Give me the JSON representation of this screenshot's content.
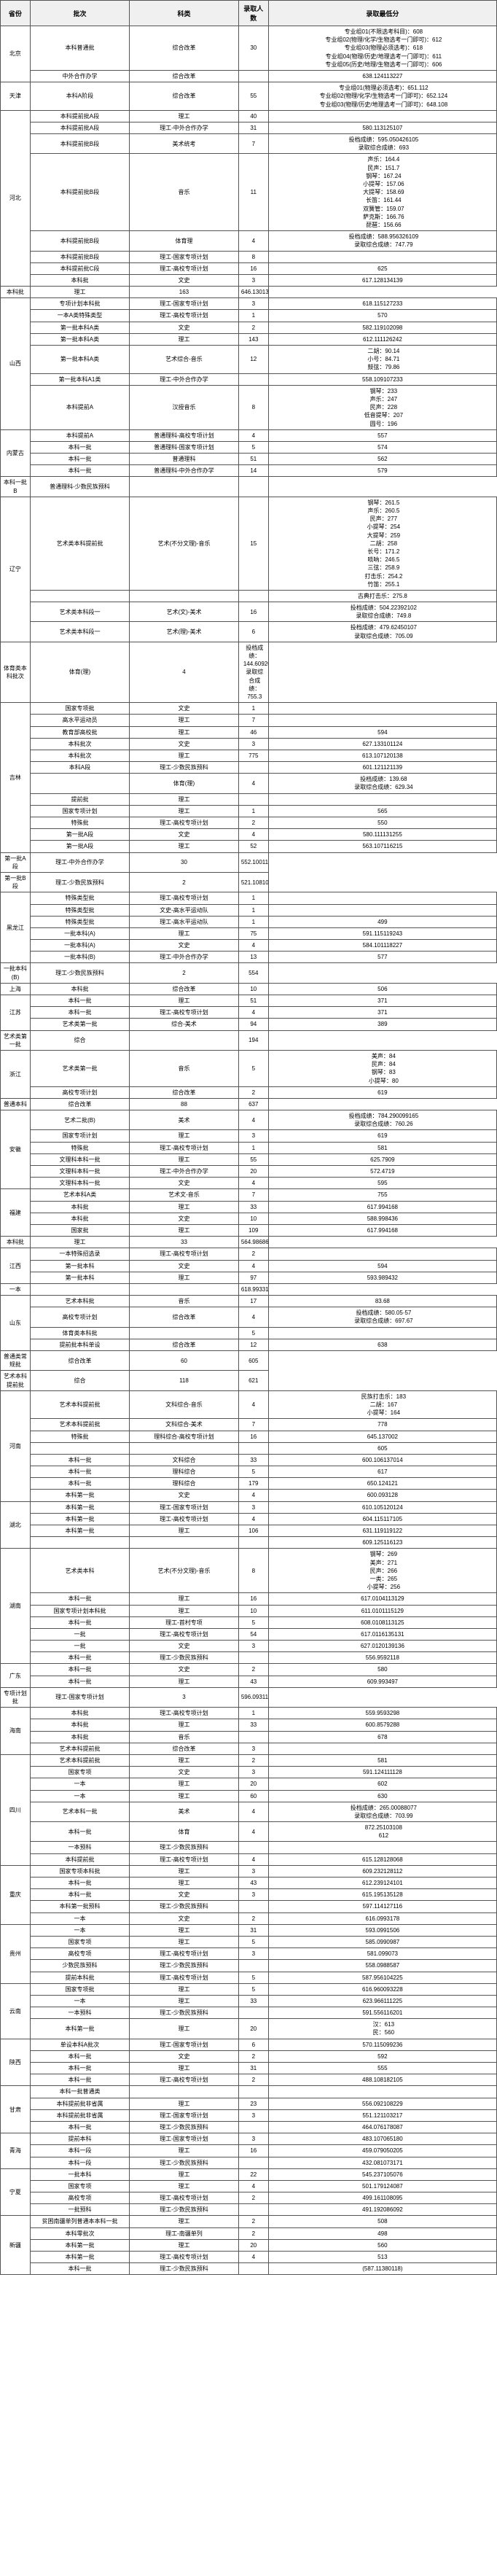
{
  "headers": [
    "省份",
    "批次",
    "科类",
    "录取人数",
    "录取最低分"
  ],
  "col_widths": [
    "6%",
    "20%",
    "22%",
    "6%",
    "46%"
  ],
  "rows": [
    {
      "p": "北京",
      "pr": 2,
      "b": "本科普通批",
      "s": "综合改革",
      "n": "30",
      "d": [
        "专业组01(不限选考科目)：608",
        "专业组02(物理/化学/生物选考一门即可)：612",
        "专业组03(物理必须选考)：618",
        "专业组04(物理/历史/地理选考一门即可)：611",
        "专业组05(历史/地理/生物选考一门即可)：606"
      ]
    },
    {
      "b": "中外合作办学",
      "s": "综合改革",
      "n": "",
      "d": [
        "638.124113227"
      ]
    },
    {
      "p": "天津",
      "pr": 1,
      "b": "本科A阶段",
      "s": "综合改革",
      "n": "55",
      "d": [
        "专业组01(物理必须选考)：651.112",
        "专业组02(物理/化学/生物选考一门即可)：652.124",
        "专业组03(物理/历史/地理选考一门即可)：648.108"
      ]
    },
    {
      "p": "河北",
      "pr": 8,
      "b": "本科提前批A段",
      "s": "理工",
      "n": "40",
      "d": []
    },
    {
      "b": "本科提前批A段",
      "s": "理工-中外合作办学",
      "n": "31",
      "d": [
        "580.113125107"
      ]
    },
    {
      "b": "本科提前批B段",
      "s": "美术统考",
      "n": "7",
      "d": [
        "投档成绩：595.050426105",
        "录取综合成绩：693"
      ]
    },
    {
      "b": "本科提前批B段",
      "s": "音乐",
      "n": "11",
      "d": [
        "声乐：164.4",
        "民声：151.7",
        "钢琴：167.24",
        "小提琴：157.06",
        "大提琴：158.69",
        "长笛：161.44",
        "双簧管：159.07",
        "萨克斯：166.76",
        "琵琶：156.66"
      ]
    },
    {
      "b": "本科提前批B段",
      "s": "体育理",
      "n": "4",
      "d": [
        "投档成绩：588.956326109",
        "录取综合成绩：747.79"
      ]
    },
    {
      "b": "本科提前批B段",
      "s": "理工-国家专项计划",
      "n": "8",
      "d": []
    },
    {
      "b": "本科提前批C段",
      "s": "理工-高校专项计划",
      "n": "16",
      "d": [
        "625"
      ]
    },
    {
      "b": "本科批",
      "s": "文史",
      "n": "3",
      "d": [
        "617.128134139"
      ]
    },
    {
      "b": "本科批",
      "s": "理工",
      "n": "163",
      "d": [
        "646.130134133"
      ]
    },
    {
      "p": "山西",
      "pr": 7,
      "b": "专项计划本科批",
      "s": "理工-国家专项计划",
      "n": "3",
      "d": [
        "618.115127233"
      ]
    },
    {
      "b": "一本A类特殊类型",
      "s": "理工-高校专项计划",
      "n": "1",
      "d": [
        "570"
      ]
    },
    {
      "b": "第一批本科A类",
      "s": "文史",
      "n": "2",
      "d": [
        "582.119102098"
      ]
    },
    {
      "b": "第一批本科A类",
      "s": "理工",
      "n": "143",
      "d": [
        "612.111126242"
      ]
    },
    {
      "b": "第一批本科A类",
      "s": "艺术综合-音乐",
      "n": "12",
      "d": [
        "二胡：90.14",
        "小号：84.71",
        "鼓弦：79.86"
      ]
    },
    {
      "b": "第一批本科A1类",
      "s": "理工-中外合作办学",
      "n": "",
      "d": [
        "558.109107233"
      ]
    },
    {
      "b": "本科提前A",
      "s": "汉授音乐",
      "n": "8",
      "d": [
        "钢琴：233",
        "声乐：247",
        "民声：228",
        "低音提琴：207",
        "圆号：196"
      ]
    },
    {
      "p": "内蒙古",
      "pr": 4,
      "b": "本科提前A",
      "s": "普通理科-高校专项计划",
      "n": "4",
      "d": [
        "557"
      ]
    },
    {
      "b": "本科一批",
      "s": "普通理科-国家专项计划",
      "n": "5",
      "d": [
        "574"
      ]
    },
    {
      "b": "本科一批",
      "s": "普通理科",
      "n": "51",
      "d": [
        "562"
      ]
    },
    {
      "b": "本科一批",
      "s": "普通理科-中外合作办学",
      "n": "14",
      "d": [
        "579"
      ]
    },
    {
      "b": "本科一批B",
      "s": "普通理科-少数民族预科",
      "n": "",
      "d": [
        ""
      ]
    },
    {
      "p": "辽宁",
      "pr": 4,
      "b": "艺术类本科提前批",
      "s": "艺术(不分文理)-音乐",
      "n": "15",
      "d": [
        "钢琴：261.5",
        "声乐：260.5",
        "民声：277",
        "小提琴：254",
        "大提琴：259",
        "二胡：258",
        "长号：171.2",
        "唢呐：246.5",
        "三弦：258.9",
        "打击乐：254.2",
        "竹笛：255.1"
      ]
    },
    {
      "b": "",
      "s": "",
      "n": "",
      "d": [
        "古典打击乐：275.8"
      ]
    },
    {
      "b": "艺术类本科段一",
      "s": "艺术(文)-美术",
      "n": "16",
      "d": [
        "投档成绩：504.22392102",
        "录取综合成绩：749.8"
      ]
    },
    {
      "b": "艺术类本科段一",
      "s": "艺术(理)-美术",
      "n": "6",
      "d": [
        "投档成绩：479.62450107",
        "录取综合成绩：705.09"
      ]
    },
    {
      "b": "体育类本科批次",
      "s": "体育(理)",
      "n": "4",
      "d": [
        "投档成绩：144.6092007",
        "录取综合成绩：755.3"
      ]
    },
    {
      "p": "吉林",
      "pr": 12,
      "b": "国家专项批",
      "s": "文史",
      "n": "1",
      "d": [
        ""
      ]
    },
    {
      "b": "高水平运动员",
      "s": "理工",
      "n": "7",
      "d": [
        ""
      ]
    },
    {
      "b": "教育部高校批",
      "s": "理工",
      "n": "46",
      "d": [
        "594"
      ]
    },
    {
      "b": "本科批次",
      "s": "文史",
      "n": "3",
      "d": [
        "627.133101124"
      ]
    },
    {
      "b": "本科批次",
      "s": "理工",
      "n": "775",
      "d": [
        "613.107120138"
      ]
    },
    {
      "b": "本科A段",
      "s": "理工-少数民族预科",
      "n": "",
      "d": [
        "601.121121139"
      ]
    },
    {
      "b": "",
      "s": "体育(理)",
      "n": "4",
      "d": [
        "投档成绩：139.68",
        "录取综合成绩：629.34"
      ]
    },
    {
      "b": "提前批",
      "s": "理工",
      "n": "",
      "d": [
        ""
      ]
    },
    {
      "b": "国家专项计划",
      "s": "理工",
      "n": "1",
      "d": [
        "565"
      ]
    },
    {
      "b": "特殊批",
      "s": "理工-高校专项计划",
      "n": "2",
      "d": [
        "550"
      ]
    },
    {
      "b": "第一批A段",
      "s": "文史",
      "n": "4",
      "d": [
        "580.111131255"
      ]
    },
    {
      "b": "第一批A段",
      "s": "理工",
      "n": "52",
      "d": [
        "563.107116215"
      ]
    },
    {
      "b": "第一批A段",
      "s": "理工-中外合作办学",
      "n": "30",
      "d": [
        "552.100112227"
      ]
    },
    {
      "b": "第一批B段",
      "s": "理工-少数民族预科",
      "n": "2",
      "d": [
        "521.108103201"
      ]
    },
    {
      "p": "黑龙江",
      "pr": 6,
      "b": "特殊类型批",
      "s": "理工-高校专项计划",
      "n": "1",
      "d": [
        ""
      ]
    },
    {
      "b": "特殊类型批",
      "s": "文史-高水平运动队",
      "n": "1",
      "d": [
        ""
      ]
    },
    {
      "b": "特殊类型批",
      "s": "理工-高水平运动队",
      "n": "1",
      "d": [
        "499"
      ]
    },
    {
      "b": "一批本科(A)",
      "s": "理工",
      "n": "75",
      "d": [
        "591.115119243"
      ]
    },
    {
      "b": "一批本科(A)",
      "s": "文史",
      "n": "4",
      "d": [
        "584.101118227"
      ]
    },
    {
      "b": "一批本科(B)",
      "s": "理工-中外合作办学",
      "n": "13",
      "d": [
        "577"
      ]
    },
    {
      "b": "一批本科(B)",
      "s": "理工-少数民族预科",
      "n": "2",
      "d": [
        "554"
      ]
    },
    {
      "p": "上海",
      "pr": 1,
      "b": "本科批",
      "s": "综合改革",
      "n": "10",
      "d": [
        "506"
      ]
    },
    {
      "p": "江苏",
      "pr": 3,
      "b": "本科一批",
      "s": "理工",
      "n": "51",
      "d": [
        "371"
      ]
    },
    {
      "b": "本科一批",
      "s": "理工-高校专项计划",
      "n": "4",
      "d": [
        "371"
      ]
    },
    {
      "b": "艺术类第一批",
      "s": "综合-美术",
      "n": "94",
      "d": [
        "389"
      ]
    },
    {
      "b": "艺术类第一批",
      "s": "综合",
      "n": "",
      "d": [
        "194"
      ]
    },
    {
      "p": "浙江",
      "pr": 2,
      "b": "艺术类第一批",
      "s": "音乐",
      "n": "5",
      "d": [
        "美声：84",
        "民声：84",
        "钢琴：83",
        "小提琴：80"
      ]
    },
    {
      "b": "高校专项计划",
      "s": "综合改革",
      "n": "2",
      "d": [
        "619"
      ]
    },
    {
      "b": "普通本科",
      "s": "综合改革",
      "n": "88",
      "d": [
        "637"
      ]
    },
    {
      "p": "安徽",
      "pr": 6,
      "b": "艺术二批(B)",
      "s": "美术",
      "n": "4",
      "d": [
        "投档成绩：784.290099165",
        "录取综合成绩：760.26"
      ]
    },
    {
      "b": "国家专项计划",
      "s": "理工",
      "n": "3",
      "d": [
        "619"
      ]
    },
    {
      "b": "特殊批",
      "s": "理工-高校专项计划",
      "n": "1",
      "d": [
        "581"
      ]
    },
    {
      "b": "文理科本科一批",
      "s": "理工",
      "n": "55",
      "d": [
        "625.7909"
      ]
    },
    {
      "b": "文理科本科一批",
      "s": "理工-中外合作办学",
      "n": "20",
      "d": [
        "572.4719"
      ]
    },
    {
      "b": "文理科本科一批",
      "s": "文史",
      "n": "4",
      "d": [
        "595"
      ]
    },
    {
      "p": "福建",
      "pr": 4,
      "b": "艺术本科A类",
      "s": "艺术文-音乐",
      "n": "7",
      "d": [
        "755"
      ]
    },
    {
      "b": "本科批",
      "s": "理工",
      "n": "33",
      "d": [
        "617.994168"
      ]
    },
    {
      "b": "本科批",
      "s": "文史",
      "n": "10",
      "d": [
        "588.998436"
      ]
    },
    {
      "b": "国家批",
      "s": "理工",
      "n": "109",
      "d": [
        "617.994168"
      ]
    },
    {
      "b": "本科批",
      "s": "理工",
      "n": "33",
      "d": [
        "564.986869"
      ]
    },
    {
      "p": "江西",
      "pr": 3,
      "b": "一本特殊招选录",
      "s": "理工-高校专项计划",
      "n": "2",
      "d": [
        ""
      ]
    },
    {
      "b": "第一批本科",
      "s": "文史",
      "n": "4",
      "d": [
        "594"
      ]
    },
    {
      "b": "第一批本科",
      "s": "理工",
      "n": "97",
      "d": [
        "593.989432"
      ]
    },
    {
      "b": "一本",
      "s": "",
      "n": "",
      "d": [
        "618.993317"
      ]
    },
    {
      "p": "山东",
      "pr": 4,
      "b": "艺术本科批",
      "s": "音乐",
      "n": "17",
      "d": [
        "83.68"
      ]
    },
    {
      "b": "高校专项计划",
      "s": "综合改革",
      "n": "4",
      "d": [
        "投档成绩：580.05·57",
        "录取综合成绩：697.67"
      ]
    },
    {
      "b": "体育类本科批",
      "s": "",
      "n": "5",
      "d": [
        ""
      ]
    },
    {
      "b": "提前批本科单设",
      "s": "综合改革",
      "n": "12",
      "d": [
        "638"
      ]
    },
    {
      "b": "普通类常规批",
      "s": "综合改革",
      "n": "60",
      "d": [
        "605"
      ]
    },
    {
      "b": "艺术本科提前批",
      "s": "综合",
      "n": "118",
      "d": [
        "621"
      ]
    },
    {
      "p": "河南",
      "pr": 8,
      "b": "艺术本科提前批",
      "s": "文科综合-音乐",
      "n": "4",
      "d": [
        "民族打击乐：183",
        "二胡：167",
        "小提琴：164"
      ]
    },
    {
      "b": "艺术本科提前批",
      "s": "文科综合-美术",
      "n": "7",
      "d": [
        "778"
      ]
    },
    {
      "b": "特殊批",
      "s": "理科综合-高校专项计划",
      "n": "16",
      "d": [
        "645.137002"
      ]
    },
    {
      "b": "",
      "s": "",
      "n": "",
      "d": [
        "605"
      ]
    },
    {
      "b": "本科一批",
      "s": "文科综合",
      "n": "33",
      "d": [
        "600.106137014"
      ]
    },
    {
      "b": "本科一批",
      "s": "理科综合",
      "n": "5",
      "d": [
        "617"
      ]
    },
    {
      "b": "本科一批",
      "s": "理科综合",
      "n": "179",
      "d": [
        "650.124121"
      ]
    },
    {
      "b": "本科第一批",
      "s": "文史",
      "n": "4",
      "d": [
        "600.093128"
      ]
    },
    {
      "p": "湖北",
      "pr": 4,
      "b": "本科第一批",
      "s": "理工-国家专项计划",
      "n": "3",
      "d": [
        "610.105120124"
      ]
    },
    {
      "b": "本科第一批",
      "s": "理工-高校专项计划",
      "n": "4",
      "d": [
        "604.115117105"
      ]
    },
    {
      "b": "本科第一批",
      "s": "理工",
      "n": "106",
      "d": [
        "631.119119122"
      ]
    },
    {
      "b": "",
      "s": "",
      "n": "",
      "d": [
        "609.125116123"
      ]
    },
    {
      "p": "湖南",
      "pr": 7,
      "b": "艺术类本科",
      "s": "艺术(不分文理)-音乐",
      "n": "8",
      "d": [
        "钢琴：269",
        "美声：271",
        "民声：266",
        "一类：265",
        "小提琴：256"
      ]
    },
    {
      "b": "本科一批",
      "s": "理工",
      "n": "16",
      "d": [
        "617.0104113129"
      ]
    },
    {
      "b": "国家专项计划本科批",
      "s": "理工",
      "n": "10",
      "d": [
        "611.0101115129"
      ]
    },
    {
      "b": "本科一批",
      "s": "理工-首村专项",
      "n": "5",
      "d": [
        "608.0108113125"
      ]
    },
    {
      "b": "一批",
      "s": "理工-高校专项计划",
      "n": "54",
      "d": [
        "617.0116135131"
      ]
    },
    {
      "b": "一批",
      "s": "文史",
      "n": "3",
      "d": [
        "627.0120139136"
      ]
    },
    {
      "b": "本科一批",
      "s": "理工-少数民族预科",
      "n": "",
      "d": [
        "556.9592118"
      ]
    },
    {
      "p": "广东",
      "pr": 2,
      "b": "本科一批",
      "s": "文史",
      "n": "2",
      "d": [
        "580"
      ]
    },
    {
      "b": "本科一批",
      "s": "理工",
      "n": "43",
      "d": [
        "609.993497"
      ]
    },
    {
      "b": "专项计划批",
      "s": "理工-国家专项计划",
      "n": "3",
      "d": [
        "596.093116258"
      ]
    },
    {
      "p": "海南",
      "pr": 4,
      "b": "本科批",
      "s": "理工-高校专项计划",
      "n": "1",
      "d": [
        "559.9593298"
      ]
    },
    {
      "b": "本科批",
      "s": "理工",
      "n": "33",
      "d": [
        "600.8579288"
      ]
    },
    {
      "b": "本科批",
      "s": "音乐",
      "n": "",
      "d": [
        "678"
      ]
    },
    {
      "b": "艺术本科提前批",
      "s": "综合改革",
      "n": "3",
      "d": [
        ""
      ]
    },
    {
      "p": "四川",
      "pr": 8,
      "b": "艺术本科提前批",
      "s": "理工",
      "n": "2",
      "d": [
        "581"
      ]
    },
    {
      "b": "国家专项",
      "s": "文史",
      "n": "3",
      "d": [
        "591.124111128"
      ]
    },
    {
      "b": "一本",
      "s": "理工",
      "n": "20",
      "d": [
        "602"
      ]
    },
    {
      "b": "一本",
      "s": "理工",
      "n": "60",
      "d": [
        "630"
      ]
    },
    {
      "b": "艺术本科一批",
      "s": "美术",
      "n": "4",
      "d": [
        "投档成绩：265.00088077",
        "录取综合成绩：703.99"
      ]
    },
    {
      "b": "本科一批",
      "s": "体育",
      "n": "4",
      "d": [
        "872.25103108",
        "612"
      ]
    },
    {
      "b": "一本预科",
      "s": "理工-少数民族预科",
      "n": "",
      "d": [
        ""
      ]
    },
    {
      "b": "本科提前批",
      "s": "理工-高校专项计划",
      "n": "4",
      "d": [
        "615.128128068"
      ]
    },
    {
      "p": "重庆",
      "pr": 5,
      "b": "国家专项本科批",
      "s": "理工",
      "n": "3",
      "d": [
        "609.232128112"
      ]
    },
    {
      "b": "本科一批",
      "s": "理工",
      "n": "43",
      "d": [
        "612.239124101"
      ]
    },
    {
      "b": "本科一批",
      "s": "文史",
      "n": "3",
      "d": [
        "615.195135128"
      ]
    },
    {
      "b": "本科第一批预科",
      "s": "理工-少数民族预科",
      "n": "",
      "d": [
        "597.114127116"
      ]
    },
    {
      "b": "一本",
      "s": "文史",
      "n": "2",
      "d": [
        "616.0993178"
      ]
    },
    {
      "p": "贵州",
      "pr": 5,
      "b": "一本",
      "s": "理工",
      "n": "31",
      "d": [
        "593.0991506"
      ]
    },
    {
      "b": "国家专项",
      "s": "理工",
      "n": "5",
      "d": [
        "585.0990987"
      ]
    },
    {
      "b": "高校专项",
      "s": "理工-高校专项计划",
      "n": "3",
      "d": [
        "581.099073"
      ]
    },
    {
      "b": "少数民族预科",
      "s": "理工-少数民族预科",
      "n": "",
      "d": [
        "558.0988587"
      ]
    },
    {
      "b": "提前本科批",
      "s": "理工-高校专项计划",
      "n": "5",
      "d": [
        "587.956104225"
      ]
    },
    {
      "p": "云南",
      "pr": 4,
      "b": "国家专项批",
      "s": "理工",
      "n": "5",
      "d": [
        "616.960093228"
      ]
    },
    {
      "b": "一本",
      "s": "理工",
      "n": "33",
      "d": [
        "623.966111225"
      ]
    },
    {
      "b": "一本预科",
      "s": "理工-少数民族预科",
      "n": "",
      "d": [
        "591.556116201"
      ]
    },
    {
      "b": "本科第一批",
      "s": "理工",
      "n": "20",
      "d": [
        "汉：613",
        "民：560"
      ]
    },
    {
      "p": "陕西",
      "pr": 4,
      "b": "单设本科A批次",
      "s": "理工-国家专项计划",
      "n": "6",
      "d": [
        "570.115099236"
      ]
    },
    {
      "b": "本科一批",
      "s": "文史",
      "n": "2",
      "d": [
        "592"
      ]
    },
    {
      "b": "本科一批",
      "s": "理工",
      "n": "31",
      "d": [
        "555"
      ]
    },
    {
      "b": "本科一批",
      "s": "理工-高校专项计划",
      "n": "2",
      "d": [
        "488.108182105"
      ]
    },
    {
      "p": "甘肃",
      "pr": 4,
      "b": "本科一批普通类",
      "s": "",
      "n": "",
      "d": [
        ""
      ]
    },
    {
      "b": "本科提前批非省属",
      "s": "理工",
      "n": "23",
      "d": [
        "556.092108229"
      ]
    },
    {
      "b": "本科提前批非省属",
      "s": "理工-国家专项计划",
      "n": "3",
      "d": [
        "551.121103217"
      ]
    },
    {
      "b": "本科一批",
      "s": "理工-少数民族预科",
      "n": "",
      "d": [
        "464.076178087"
      ]
    },
    {
      "p": "青海",
      "pr": 3,
      "b": "提前本科",
      "s": "理工-国家专项计划",
      "n": "3",
      "d": [
        "483.107065180"
      ]
    },
    {
      "b": "本科一段",
      "s": "理工",
      "n": "16",
      "d": [
        "459.079050205"
      ]
    },
    {
      "b": "本科一段",
      "s": "理工-少数民族预科",
      "n": "",
      "d": [
        "432.081073171"
      ]
    },
    {
      "p": "宁夏",
      "pr": 4,
      "b": "一批本科",
      "s": "理工",
      "n": "22",
      "d": [
        "545.237105076"
      ]
    },
    {
      "b": "国家专项",
      "s": "理工",
      "n": "4",
      "d": [
        "501.179124087"
      ]
    },
    {
      "b": "高校专项",
      "s": "理工-高校专项计划",
      "n": "2",
      "d": [
        "499.161108095"
      ]
    },
    {
      "b": "一批预科",
      "s": "理工-少数民族预科",
      "n": "",
      "d": [
        "491.192086092"
      ]
    },
    {
      "p": "新疆",
      "pr": 5,
      "b": "贫困南疆单列普通本本科一批",
      "s": "理工",
      "n": "2",
      "d": [
        "508"
      ]
    },
    {
      "b": "本科零批次",
      "s": "理工-南疆单列",
      "n": "2",
      "d": [
        "498"
      ]
    },
    {
      "b": "本科第一批",
      "s": "理工",
      "n": "20",
      "d": [
        "560"
      ]
    },
    {
      "b": "本科第一批",
      "s": "理工-高校专项计划",
      "n": "4",
      "d": [
        "513"
      ]
    },
    {
      "b": "本科一批",
      "s": "理工-少数民族预科",
      "n": "",
      "d": [
        "(587.11380118)"
      ]
    }
  ]
}
